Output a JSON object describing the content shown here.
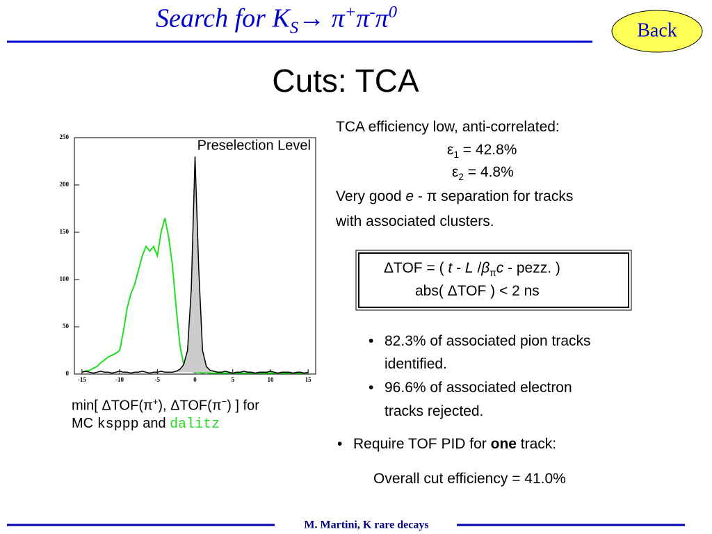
{
  "header": {
    "title_parts": [
      "Search for K",
      "S",
      "→ ",
      "π",
      "+",
      "π",
      "-",
      "π",
      "0"
    ],
    "back": "Back"
  },
  "slide_title": "Cuts: TCA",
  "text": {
    "intro": "TCA efficiency low, anti-correlated:",
    "eff1": [
      "ε",
      "1",
      " = 42.8%"
    ],
    "eff2": [
      "ε",
      "2",
      " = 4.8%"
    ],
    "sep1": [
      "Very good ",
      "e",
      " - π separation for tracks"
    ],
    "sep2": "with associated clusters.",
    "formula1": [
      "ΔTOF = ( ",
      "t",
      " - ",
      "L",
      " /",
      "β",
      "π",
      "c",
      " - pezz. )"
    ],
    "formula2": "abs( ΔTOF ) < 2 ns",
    "bullets": [
      [
        "82.3% of associated pion tracks",
        "identified."
      ],
      [
        "96.6% of associated electron",
        "tracks rejected."
      ]
    ],
    "require": [
      "Require TOF PID for ",
      "one",
      " track:"
    ],
    "overall": "Overall cut efficiency = 41.0%",
    "caption1": [
      "min[ ΔTOF(π",
      "+",
      "),  ΔTOF(π",
      "−",
      ") ] for"
    ],
    "caption2": [
      "MC ",
      " and "
    ]
  },
  "footer": "M. Martini, K rare decays",
  "chart_data": {
    "type": "line",
    "annotation": "Preselection Level",
    "x": [
      -15,
      -14.5,
      -14,
      -13.5,
      -13,
      -12.5,
      -12,
      -11.5,
      -11,
      -10.5,
      -10,
      -9.5,
      -9,
      -8.5,
      -8,
      -7.5,
      -7,
      -6.5,
      -6,
      -5.5,
      -5,
      -4.5,
      -4,
      -3.5,
      -3,
      -2.5,
      -2,
      -1.5,
      -1,
      -0.5,
      0,
      0.5,
      1,
      1.5,
      2,
      2.5,
      3,
      3.5,
      4,
      4.5,
      5,
      5.5,
      6,
      6.5,
      7,
      7.5,
      8,
      8.5,
      9,
      9.5,
      10,
      10.5,
      11,
      11.5,
      12,
      12.5,
      13,
      13.5,
      14,
      14.5,
      15
    ],
    "series": [
      {
        "name": "ksppp",
        "color": "#000000",
        "values": [
          2,
          3,
          2,
          1,
          2,
          3,
          2,
          2,
          1,
          2,
          3,
          2,
          2,
          1,
          2,
          2,
          3,
          2,
          1,
          2,
          2,
          3,
          2,
          2,
          2,
          3,
          5,
          10,
          25,
          90,
          230,
          110,
          25,
          8,
          4,
          3,
          2,
          2,
          3,
          2,
          1,
          2,
          2,
          3,
          2,
          2,
          1,
          2,
          2,
          2,
          3,
          2,
          1,
          2,
          2,
          2,
          1,
          2,
          2,
          1,
          2
        ]
      },
      {
        "name": "dalitz",
        "color": "#22dd22",
        "values": [
          2,
          3,
          4,
          6,
          8,
          12,
          15,
          18,
          20,
          22,
          25,
          45,
          70,
          85,
          95,
          110,
          125,
          135,
          130,
          135,
          125,
          150,
          165,
          145,
          115,
          70,
          30,
          10,
          5,
          3,
          2,
          2,
          1,
          2,
          1,
          1,
          1,
          1,
          1,
          1,
          1,
          1,
          1,
          1,
          1,
          1,
          1,
          1,
          1,
          1,
          1,
          1,
          1,
          1,
          1,
          1,
          1,
          1,
          1,
          1,
          1
        ]
      }
    ],
    "xlim": [
      -16,
      16
    ],
    "ylim": [
      0,
      250
    ],
    "xticks": [
      -15,
      -10,
      -5,
      0,
      5,
      10,
      15
    ],
    "yticks": [
      0,
      50,
      100,
      150,
      200,
      250
    ]
  }
}
